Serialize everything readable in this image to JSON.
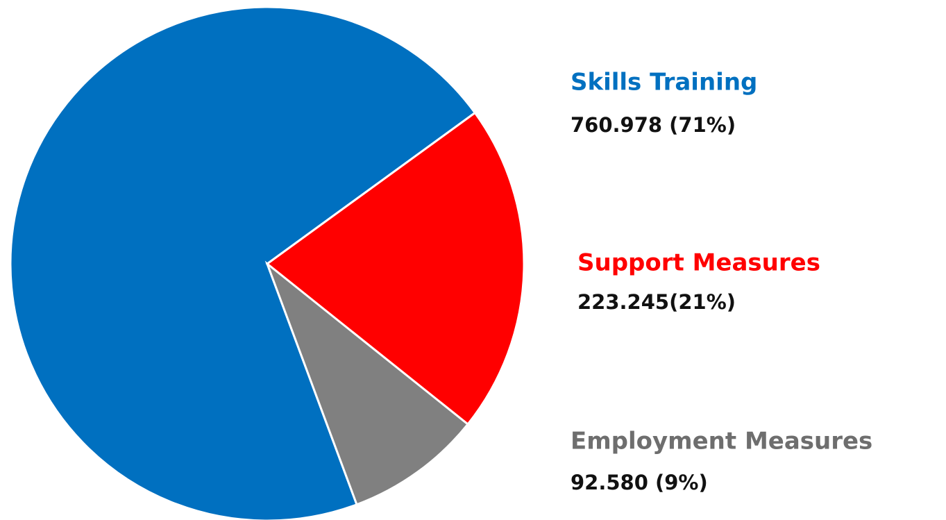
{
  "chart_data": {
    "type": "pie",
    "categories": [
      "Skills Training",
      "Support Measures",
      "Employment Measures"
    ],
    "values": [
      760.978,
      223.245,
      92.58
    ],
    "value_labels": [
      "760.978 (71%)",
      "223.245(21%)",
      "92.580 (9%)"
    ],
    "colors": [
      "#0070c0",
      "#ff0000",
      "#808080"
    ],
    "label_colors": [
      "#0070c0",
      "#ff0000",
      "#6e6e6e"
    ]
  }
}
